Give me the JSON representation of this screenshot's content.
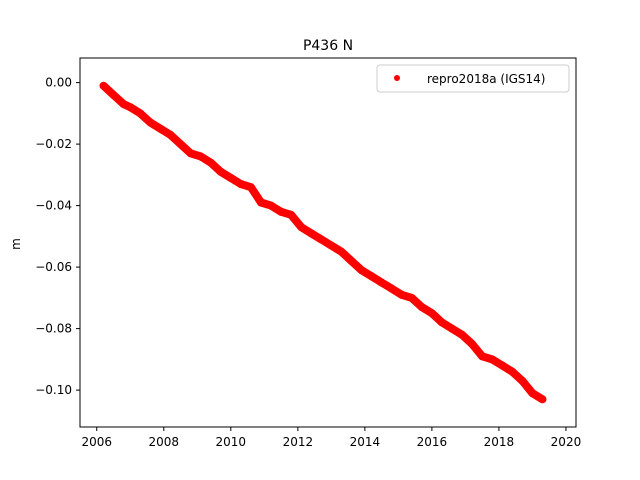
{
  "chart_data": {
    "type": "scatter",
    "title": "P436 N",
    "xlabel": "",
    "ylabel": "m",
    "xlim": [
      2005.5,
      2020.3
    ],
    "ylim": [
      -0.112,
      0.008
    ],
    "xticks": [
      2006,
      2008,
      2010,
      2012,
      2014,
      2016,
      2018,
      2020
    ],
    "xtick_labels": [
      "2006",
      "2008",
      "2010",
      "2012",
      "2014",
      "2016",
      "2018",
      "2020"
    ],
    "yticks": [
      0.0,
      -0.02,
      -0.04,
      -0.06,
      -0.08,
      -0.1
    ],
    "ytick_labels": [
      "0.00",
      "−0.02",
      "−0.04",
      "−0.06",
      "−0.08",
      "−0.10"
    ],
    "grid": false,
    "legend_position": "top-right",
    "series": [
      {
        "name": "repro2018a (IGS14)",
        "color": "#ff0000",
        "marker": "circle",
        "x": [
          2006.2,
          2006.5,
          2006.8,
          2007.0,
          2007.3,
          2007.6,
          2007.9,
          2008.2,
          2008.5,
          2008.8,
          2009.1,
          2009.4,
          2009.7,
          2010.0,
          2010.3,
          2010.6,
          2010.9,
          2011.2,
          2011.5,
          2011.8,
          2012.1,
          2012.4,
          2012.7,
          2013.0,
          2013.3,
          2013.6,
          2013.9,
          2014.2,
          2014.5,
          2014.8,
          2015.1,
          2015.4,
          2015.7,
          2016.0,
          2016.3,
          2016.6,
          2016.9,
          2017.2,
          2017.5,
          2017.8,
          2018.1,
          2018.4,
          2018.7,
          2019.0,
          2019.3
        ],
        "y": [
          -0.001,
          -0.004,
          -0.007,
          -0.008,
          -0.01,
          -0.013,
          -0.015,
          -0.017,
          -0.02,
          -0.023,
          -0.024,
          -0.026,
          -0.029,
          -0.031,
          -0.033,
          -0.034,
          -0.039,
          -0.04,
          -0.042,
          -0.043,
          -0.047,
          -0.049,
          -0.051,
          -0.053,
          -0.055,
          -0.058,
          -0.061,
          -0.063,
          -0.065,
          -0.067,
          -0.069,
          -0.07,
          -0.073,
          -0.075,
          -0.078,
          -0.08,
          -0.082,
          -0.085,
          -0.089,
          -0.09,
          -0.092,
          -0.094,
          -0.097,
          -0.101,
          -0.103
        ]
      }
    ]
  }
}
